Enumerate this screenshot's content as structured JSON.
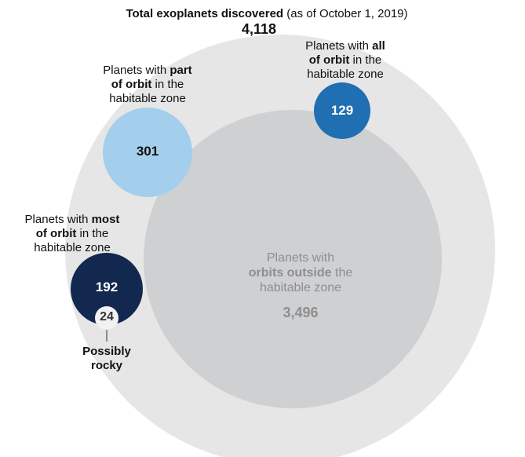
{
  "total": {
    "label_bold": "Total exoplanets discovered",
    "label_rest": " (as of October 1, 2019)",
    "value": "4,118"
  },
  "all_orbit": {
    "pre": "Planets with ",
    "bold1": "all",
    "bold2": "of orbit",
    "post": " in the",
    "line3": "habitable zone",
    "value": "129"
  },
  "part_orbit": {
    "pre": "Planets with ",
    "bold1": "part",
    "bold2": "of orbit",
    "post": " in the",
    "line3": "habitable zone",
    "value": "301"
  },
  "most_orbit": {
    "pre": "Planets with ",
    "bold1": "most",
    "bold2": "of orbit",
    "post": " in the",
    "line3": "habitable zone",
    "value": "192"
  },
  "rocky": {
    "value": "24",
    "line1": "Possibly",
    "line2": "rocky"
  },
  "outside": {
    "line1": "Planets with",
    "bold": "orbits outside",
    "post": " the",
    "line3": "habitable zone",
    "value": "3,496"
  },
  "colors": {
    "total": "#e6e6e6",
    "outside": "#cfd0d2",
    "part": "#a3cfec",
    "all": "#1f6fb2",
    "most": "#13284f",
    "rocky": "#f2f2f2"
  }
}
